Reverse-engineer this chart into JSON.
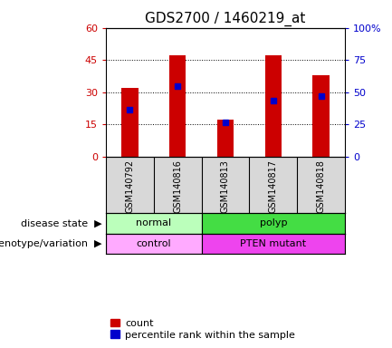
{
  "title": "GDS2700 / 1460219_at",
  "samples": [
    "GSM140792",
    "GSM140816",
    "GSM140813",
    "GSM140817",
    "GSM140818"
  ],
  "counts": [
    32,
    47,
    17,
    47,
    38
  ],
  "percentiles": [
    22,
    33,
    16,
    26,
    28
  ],
  "ylim_left": [
    0,
    60
  ],
  "ylim_right": [
    0,
    100
  ],
  "yticks_left": [
    0,
    15,
    30,
    45,
    60
  ],
  "yticks_right": [
    0,
    25,
    50,
    75,
    100
  ],
  "bar_color": "#cc0000",
  "marker_color": "#0000cc",
  "disease_state_groups": [
    {
      "label": "normal",
      "start": 0,
      "end": 1,
      "color": "#bbffbb"
    },
    {
      "label": "polyp",
      "start": 2,
      "end": 4,
      "color": "#44dd44"
    }
  ],
  "genotype_groups": [
    {
      "label": "control",
      "start": 0,
      "end": 1,
      "color": "#ffaaff"
    },
    {
      "label": "PTEN mutant",
      "start": 2,
      "end": 4,
      "color": "#ee44ee"
    }
  ],
  "bg_color": "#d8d8d8",
  "label_color_left": "#cc0000",
  "label_color_right": "#0000cc",
  "title_fontsize": 11,
  "tick_fontsize": 8,
  "sample_fontsize": 7,
  "annot_fontsize": 8,
  "legend_fontsize": 8,
  "row_label_fontsize": 8
}
